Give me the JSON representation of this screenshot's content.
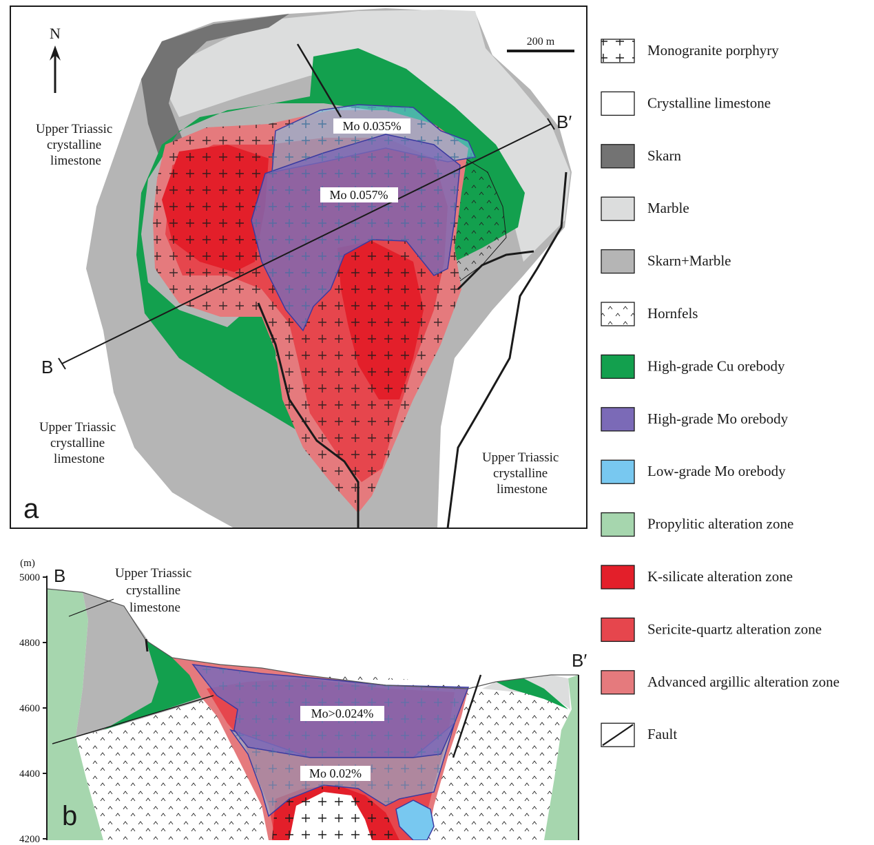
{
  "colors": {
    "marble": "#dcdddd",
    "skarn": "#737373",
    "skarn_marble": "#b5b5b5",
    "high_cu": "#13a04e",
    "high_mo": "#7b6ab7",
    "low_mo": "#78c8f0",
    "propylitic": "#a6d6ae",
    "k_silicate": "#e31f2a",
    "sericite": "#e6464d",
    "argillic": "#e57a7d"
  },
  "panel_a": {
    "panel_letter": "a",
    "north_label": "N",
    "scale_label": "200 m",
    "section_start": "B",
    "section_end": "B′",
    "region_labels": [
      [
        "Upper Triassic",
        "crystalline",
        "limestone"
      ],
      [
        "Upper Triassic",
        "crystalline",
        "limestone"
      ],
      [
        "Upper Triassic",
        "crystalline",
        "limestone"
      ]
    ],
    "grade_labels": [
      "Mo 0.035%",
      "Mo 0.057%"
    ]
  },
  "panel_b": {
    "panel_letter": "b",
    "y_unit": "(m)",
    "y_ticks": [
      "5000",
      "4800",
      "4600",
      "4400",
      "4200"
    ],
    "section_start": "B",
    "section_end": "B′",
    "region_label": [
      "Upper Triassic",
      "crystalline",
      "limestone"
    ],
    "grade_labels": [
      "Mo>0.024%",
      "Mo 0.02%"
    ]
  },
  "legend": [
    {
      "label": "Monogranite porphyry",
      "swatch": "porphyry"
    },
    {
      "label": "Crystalline limestone",
      "swatch": "limestone"
    },
    {
      "label": "Skarn",
      "swatch": "skarn"
    },
    {
      "label": "Marble",
      "swatch": "marble"
    },
    {
      "label": "Skarn+Marble",
      "swatch": "skarn_marble"
    },
    {
      "label": "Hornfels",
      "swatch": "hornfels"
    },
    {
      "label": "High-grade Cu orebody",
      "swatch": "high_cu"
    },
    {
      "label": "High-grade Mo orebody",
      "swatch": "high_mo"
    },
    {
      "label": "Low-grade Mo orebody",
      "swatch": "low_mo"
    },
    {
      "label": "Propylitic alteration zone",
      "swatch": "propylitic"
    },
    {
      "label": "K-silicate alteration zone",
      "swatch": "k_silicate"
    },
    {
      "label": "Sericite-quartz alteration zone",
      "swatch": "sericite"
    },
    {
      "label": "Advanced argillic alteration zone",
      "swatch": "argillic"
    },
    {
      "label": "Fault",
      "swatch": "fault"
    }
  ]
}
